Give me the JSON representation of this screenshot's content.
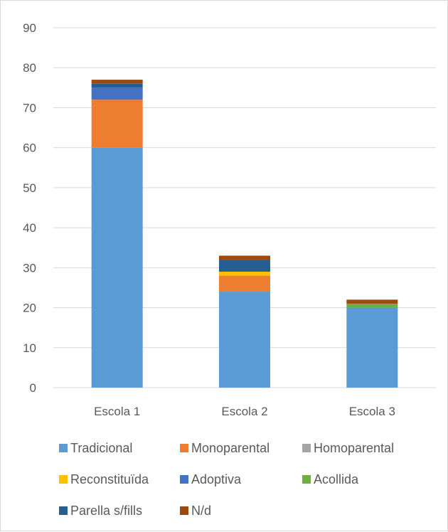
{
  "chart_data": {
    "type": "bar",
    "stacked": true,
    "categories": [
      "Escola 1",
      "Escola 2",
      "Escola 3"
    ],
    "ylim": [
      0,
      90
    ],
    "yticks": [
      0,
      10,
      20,
      30,
      40,
      50,
      60,
      70,
      80,
      90
    ],
    "grid": true,
    "legend_position": "bottom",
    "series": [
      {
        "name": "Tradicional",
        "color": "#5b9bd5",
        "values": [
          60,
          24,
          20
        ]
      },
      {
        "name": "Monoparental",
        "color": "#ed7d31",
        "values": [
          12,
          4,
          0
        ]
      },
      {
        "name": "Homoparental",
        "color": "#a5a5a5",
        "values": [
          0,
          0,
          0
        ]
      },
      {
        "name": "Reconstituïda",
        "color": "#ffc000",
        "values": [
          0,
          1,
          0
        ]
      },
      {
        "name": "Adoptiva",
        "color": "#4472c4",
        "values": [
          3,
          0,
          0
        ]
      },
      {
        "name": "Acollida",
        "color": "#70ad47",
        "values": [
          0,
          0,
          1
        ]
      },
      {
        "name": "Parella s/fills",
        "color": "#255e91",
        "values": [
          1,
          3,
          0
        ]
      },
      {
        "name": "N/d",
        "color": "#9e480e",
        "values": [
          1,
          1,
          1
        ]
      }
    ]
  }
}
